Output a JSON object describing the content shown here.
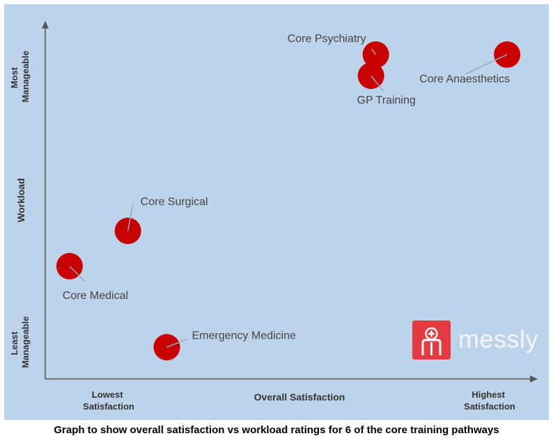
{
  "caption": "Graph to show overall satisfaction vs workload ratings for 6 of the core training pathways",
  "logo": {
    "text": "messly",
    "icon": "doctor-plus-icon",
    "color": "#e53a3f"
  },
  "colors": {
    "background": "#bcd3ea",
    "point": "#c80000",
    "axis": "#555555",
    "label": "#444444"
  },
  "chart_data": {
    "type": "scatter",
    "title": "Graph to show overall satisfaction vs workload ratings for 6 of the core training pathways",
    "xlabel": "Overall Satisfaction",
    "ylabel": "Workload",
    "x_tick_labels": {
      "low": "Lowest Satisfaction",
      "high": "Highest Satisfaction"
    },
    "y_tick_labels": {
      "low": "Least Manageable",
      "high": "Most Manageable"
    },
    "xlim": [
      0,
      10
    ],
    "ylim": [
      0,
      10
    ],
    "grid": false,
    "points": [
      {
        "name": "Core Psychiatry",
        "x": 6.8,
        "y": 9.2
      },
      {
        "name": "GP Training",
        "x": 6.7,
        "y": 8.6
      },
      {
        "name": "Core Anaesthetics",
        "x": 9.5,
        "y": 9.2
      },
      {
        "name": "Core Surgical",
        "x": 1.7,
        "y": 4.2
      },
      {
        "name": "Core Medical",
        "x": 0.5,
        "y": 3.2
      },
      {
        "name": "Emergency Medicine",
        "x": 2.5,
        "y": 0.9
      }
    ]
  }
}
